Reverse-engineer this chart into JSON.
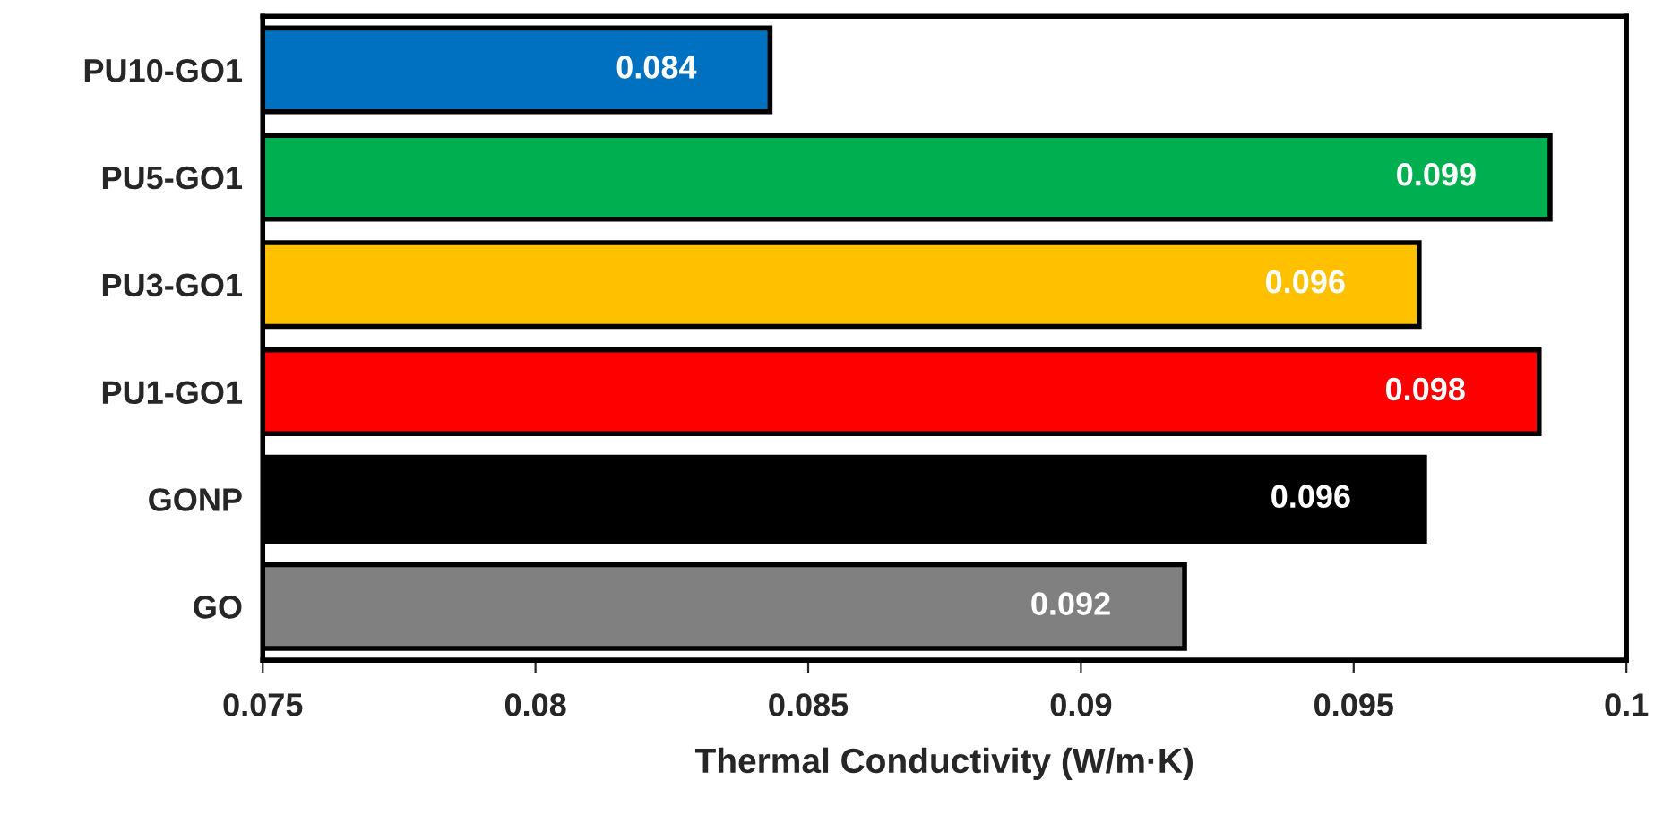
{
  "chart_data": {
    "type": "bar",
    "orientation": "horizontal",
    "xlabel": "Thermal Conductivity (W/m·K)",
    "categories": [
      "PU10-GO1",
      "PU5-GO1",
      "PU3-GO1",
      "PU1-GO1",
      "GONP",
      "GO"
    ],
    "values": [
      0.0843,
      0.0986,
      0.0962,
      0.0984,
      0.0963,
      0.0919
    ],
    "colors": [
      "#0070c0",
      "#00b050",
      "#ffc000",
      "#ff0000",
      "#000000",
      "#808080"
    ],
    "value_labels": [
      "0.084",
      "0.099",
      "0.096",
      "0.098",
      "0.096",
      "0.092"
    ],
    "xlim": [
      0.075,
      0.1
    ],
    "xticks": [
      0.075,
      0.08,
      0.085,
      0.09,
      0.095,
      0.1
    ],
    "grid": false,
    "legend": false
  }
}
